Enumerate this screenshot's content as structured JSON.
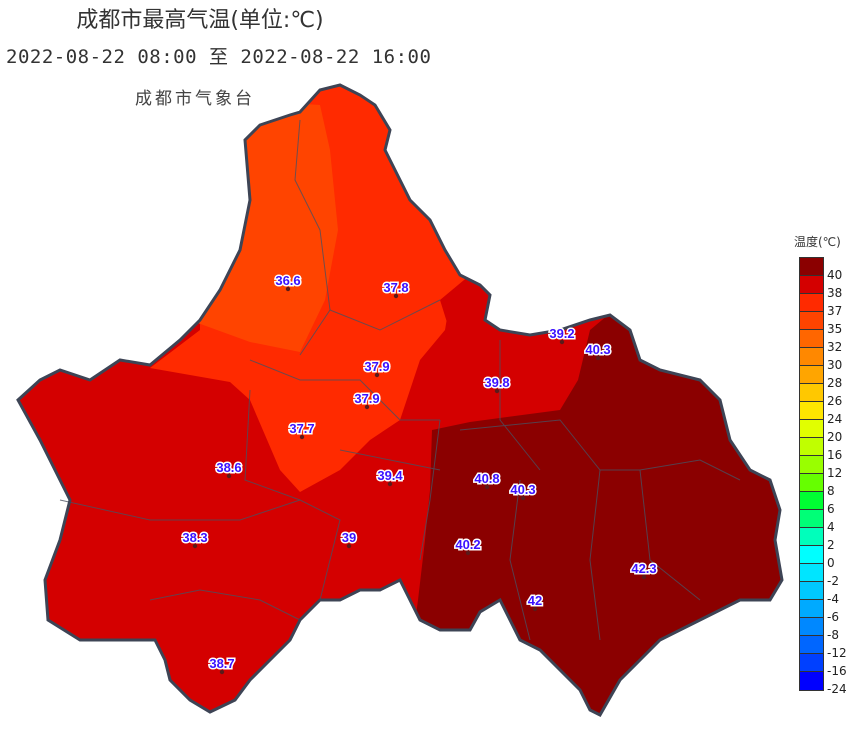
{
  "title": "成都市最高气温(单位:℃)",
  "subtitle": "2022-08-22 08:00 至 2022-08-22 16:00",
  "organization": "成都市气象台",
  "legend": {
    "title": "温度(℃)",
    "items": [
      {
        "label": "40",
        "color": "#8b0000"
      },
      {
        "label": "38",
        "color": "#d40000"
      },
      {
        "label": "37",
        "color": "#ff2a00"
      },
      {
        "label": "35",
        "color": "#ff4400"
      },
      {
        "label": "32",
        "color": "#ff6600"
      },
      {
        "label": "30",
        "color": "#ff8800"
      },
      {
        "label": "28",
        "color": "#ffa500"
      },
      {
        "label": "26",
        "color": "#ffc800"
      },
      {
        "label": "24",
        "color": "#ffe600"
      },
      {
        "label": "20",
        "color": "#e1ff00"
      },
      {
        "label": "16",
        "color": "#c0ff00"
      },
      {
        "label": "12",
        "color": "#99ff00"
      },
      {
        "label": "8",
        "color": "#66ff00"
      },
      {
        "label": "6",
        "color": "#00ff33"
      },
      {
        "label": "4",
        "color": "#00ff77"
      },
      {
        "label": "2",
        "color": "#00ffbb"
      },
      {
        "label": "0",
        "color": "#00ffff"
      },
      {
        "label": "-2",
        "color": "#00e5ff"
      },
      {
        "label": "-4",
        "color": "#00c8ff"
      },
      {
        "label": "-6",
        "color": "#00aaff"
      },
      {
        "label": "-8",
        "color": "#0088ff"
      },
      {
        "label": "-12",
        "color": "#0066ff"
      },
      {
        "label": "-16",
        "color": "#0040ff"
      },
      {
        "label": "-24",
        "color": "#0000ff"
      }
    ]
  },
  "stations": [
    {
      "value": "36.6",
      "lon_lat_hint": "northwest"
    },
    {
      "value": "37.8"
    },
    {
      "value": "39.2"
    },
    {
      "value": "40.3"
    },
    {
      "value": "37.9"
    },
    {
      "value": "39.8"
    },
    {
      "value": "37.9"
    },
    {
      "value": "37.7"
    },
    {
      "value": "38.6"
    },
    {
      "value": "39.4"
    },
    {
      "value": "40.8"
    },
    {
      "value": "40.3"
    },
    {
      "value": "38.3"
    },
    {
      "value": "39"
    },
    {
      "value": "40.2"
    },
    {
      "value": "42.3"
    },
    {
      "value": "42"
    },
    {
      "value": "38.7"
    }
  ]
}
